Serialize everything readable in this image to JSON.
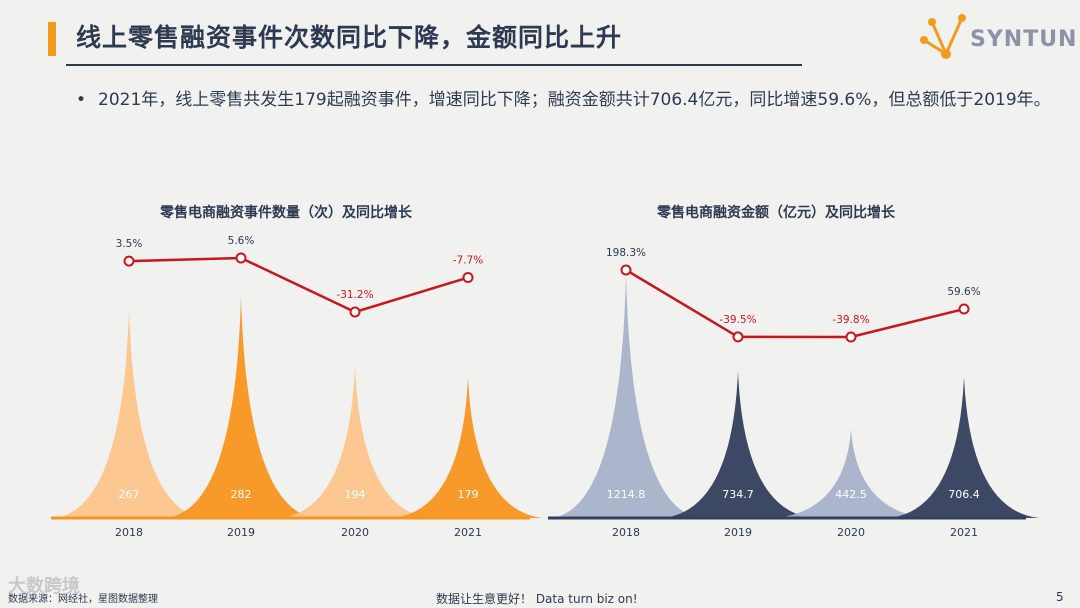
{
  "header": {
    "title": "线上零售融资事件次数同比下降，金额同比上升",
    "logo_text": "SYNTUN"
  },
  "bullet": {
    "text": "2021年，线上零售共发生179起融资事件，增速同比下降；融资金额共计706.4亿元，同比增速59.6%，但总额低于2019年。"
  },
  "chart_data": [
    {
      "type": "area",
      "title": "零售电商融资事件数量（次）及同比增长",
      "categories": [
        "2018",
        "2019",
        "2020",
        "2021"
      ],
      "series": [
        {
          "values": [
            267,
            282,
            194,
            179
          ],
          "value_labels": [
            "267",
            "282",
            "194",
            "179"
          ]
        },
        {
          "values": [
            3.5,
            5.6,
            -31.2,
            -7.7
          ],
          "value_labels": [
            "3.5%",
            "5.6%",
            "-31.2%",
            "-7.7%"
          ]
        }
      ],
      "colors": [
        "#fdc48c",
        "#f7951f",
        "#fdc48c",
        "#f7951f"
      ],
      "growth_color": "#c8161d"
    },
    {
      "type": "area",
      "title": "零售电商融资金额（亿元）及同比增长",
      "categories": [
        "2018",
        "2019",
        "2020",
        "2021"
      ],
      "series": [
        {
          "values": [
            1214.8,
            734.7,
            442.5,
            706.4
          ],
          "value_labels": [
            "1214.8",
            "734.7",
            "442.5",
            "706.4"
          ]
        },
        {
          "values": [
            198.3,
            -39.5,
            -39.8,
            59.6
          ],
          "value_labels": [
            "198.3%",
            "-39.5%",
            "-39.8%",
            "59.6%"
          ]
        }
      ],
      "colors": [
        "#a6b1c9",
        "#333f5c",
        "#a6b1c9",
        "#333f5c"
      ],
      "growth_color": "#c8161d"
    }
  ],
  "footer": {
    "source": "数据来源：网经社，星图数据整理",
    "watermark": "大数跨境",
    "slogan": "数据让生意更好！ Data turn biz on!",
    "page": "5"
  }
}
